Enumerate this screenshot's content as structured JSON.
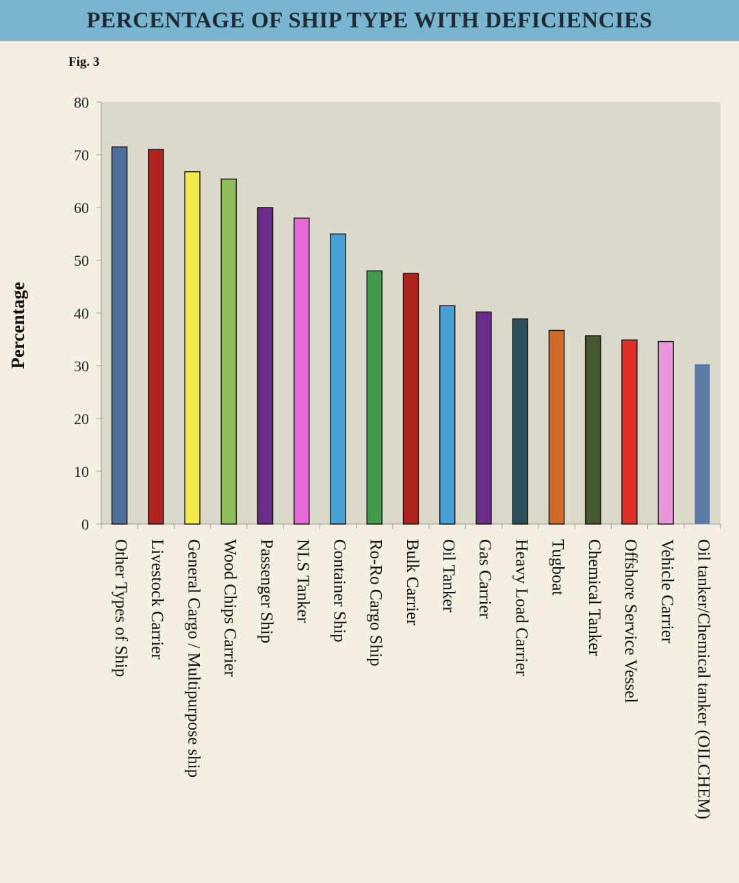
{
  "header": {
    "title": "PERCENTAGE OF SHIP TYPE WITH DEFICIENCIES",
    "fig_label": "Fig. 3"
  },
  "chart_data": {
    "type": "bar",
    "title": "PERCENTAGE OF SHIP TYPE WITH DEFICIENCIES",
    "xlabel": "",
    "ylabel": "Percentage",
    "ylim": [
      0,
      80
    ],
    "yticks": [
      0,
      10,
      20,
      30,
      40,
      50,
      60,
      70,
      80
    ],
    "grid": false,
    "categories": [
      "Other Types of Ship",
      "Livestock Carrier",
      "General Cargo / Multipurpose ship",
      "Wood Chips Carrier",
      "Passenger Ship",
      "NLS Tanker",
      "Container Ship",
      "Ro-Ro Cargo Ship",
      "Bulk Carrier",
      "Oil Tanker",
      "Gas Carrier",
      "Heavy Load Carrier",
      "Tugboat",
      "Chemical Tanker",
      "Offshore Service Vessel",
      "Vehicle Carrier",
      "Oil tanker/Chemical tanker (OILCHEM)"
    ],
    "values": [
      71.5,
      71.0,
      66.8,
      65.4,
      60.0,
      58.0,
      55.0,
      48.0,
      47.5,
      41.4,
      40.2,
      38.9,
      36.7,
      35.7,
      34.9,
      34.6,
      30.3
    ],
    "colors": [
      "#4e6f99",
      "#b0231f",
      "#f2e94b",
      "#8fbf5a",
      "#6a2d8a",
      "#e36ad6",
      "#46a0d6",
      "#3f9a4a",
      "#b0231f",
      "#46a0d6",
      "#6a2d8a",
      "#2a4f5a",
      "#cf6a28",
      "#445a2e",
      "#dd3028",
      "#e996da",
      "#5b7aa6"
    ],
    "plot_background": "#dcd9cb",
    "page_background": "#f4efe0",
    "banner_color": "#7ab6cf"
  }
}
